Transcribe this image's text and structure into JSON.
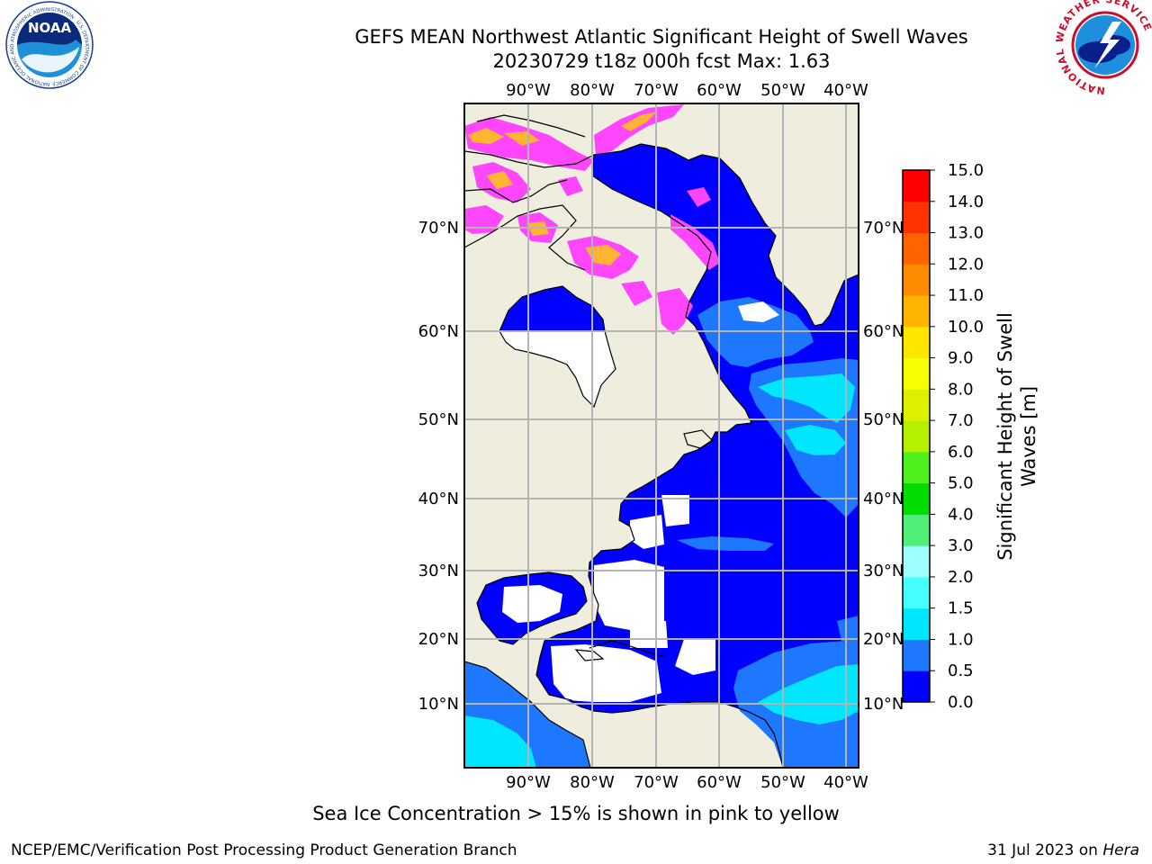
{
  "title_line1": "GEFS MEAN Northwest Atlantic Significant Height of Swell Waves",
  "title_line2": "20230729 t18z 000h fcst   Max: 1.63",
  "lon_labels": [
    "90°W",
    "80°W",
    "70°W",
    "60°W",
    "50°W",
    "40°W"
  ],
  "lat_labels": [
    "70°N",
    "60°N",
    "50°N",
    "40°N",
    "30°N",
    "20°N",
    "10°N"
  ],
  "colorbar": {
    "label_line1": "Significant Height of Swell",
    "label_line2": "Waves [m]",
    "ticks": [
      "0.0",
      "0.5",
      "1.0",
      "1.5",
      "2.0",
      "3.0",
      "4.0",
      "5.0",
      "6.0",
      "7.0",
      "8.0",
      "9.0",
      "10.0",
      "11.0",
      "12.0",
      "13.0",
      "14.0",
      "15.0"
    ],
    "colors": [
      "#0000ff",
      "#1e78ff",
      "#00e6ff",
      "#46ffff",
      "#a0ffff",
      "#50f078",
      "#00dc00",
      "#50ef1e",
      "#b4f000",
      "#dcf000",
      "#f5ff00",
      "#ffe600",
      "#ffb400",
      "#ff8c00",
      "#ff6400",
      "#ff3200",
      "#ff0000"
    ]
  },
  "colors": {
    "land": "#efedde",
    "ocean_low": "#0000ff",
    "ocean_mid": "#1e78ff",
    "ocean_high": "#00e6ff",
    "ice_pink": "#ff46ff",
    "ice_orange": "#ffb432",
    "grid": "#b4b4b4"
  },
  "ice_note": "Sea Ice Concentration > 15% is shown in pink to yellow",
  "footer_left": "NCEP/EMC/Verification Post Processing Product Generation Branch",
  "footer_date": "31 Jul 2023 on ",
  "footer_host": "Hera",
  "logo_left": "NOAA",
  "logo_left_ring": "NATIONAL OCEANIC AND ATMOSPHERIC ADMINISTRATION · U.S. DEPARTMENT OF COMMERCE",
  "logo_right_ring": "NATIONAL WEATHER SERVICE"
}
